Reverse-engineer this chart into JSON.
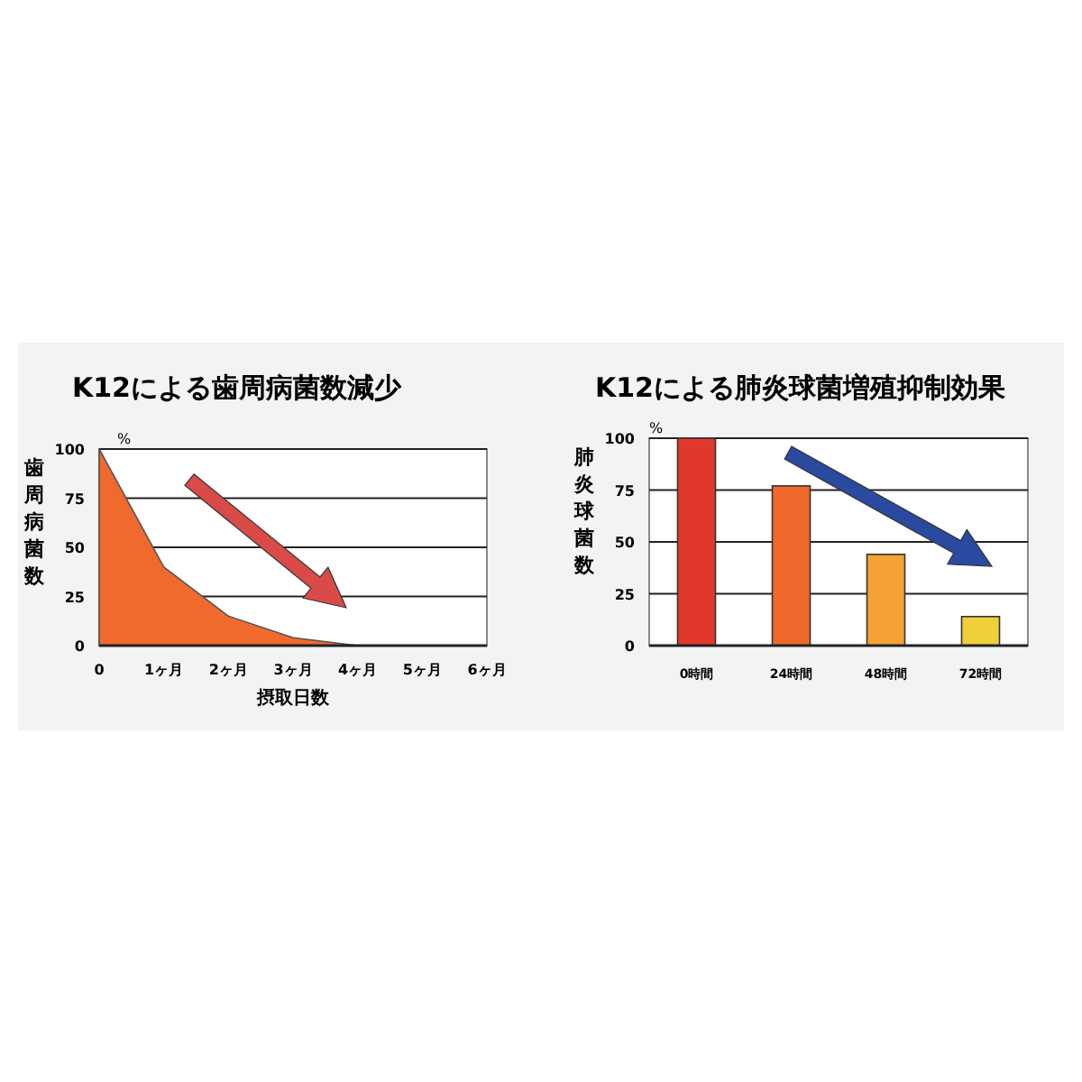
{
  "chart_data": [
    {
      "type": "area",
      "title": "K12による歯周病菌数減少",
      "ylabel": "歯周病菌数",
      "xlabel": "摂取日数",
      "annotations": [
        "%"
      ],
      "x": [
        0,
        1,
        2,
        3,
        4
      ],
      "series": [
        {
          "color": "#f06a2e",
          "values": [
            100,
            40,
            15,
            4,
            0
          ]
        }
      ],
      "xlim": [
        0,
        6
      ],
      "xticks": [
        0,
        {
          "value": 1,
          "label": "1ヶ月"
        },
        {
          "value": 2,
          "label": "2ヶ月"
        },
        {
          "value": 3,
          "label": "3ヶ月"
        },
        {
          "value": 4,
          "label": "4ヶ月"
        },
        {
          "value": 5,
          "label": "5ヶ月"
        },
        {
          "value": 6,
          "label": "6ヶ月"
        }
      ],
      "ylim": [
        0,
        100
      ],
      "yticks": [
        0,
        25,
        50,
        75,
        100
      ],
      "grid": "y"
    },
    {
      "type": "bar",
      "title": "K12による肺炎球菌増殖抑制効果",
      "ylabel": "肺炎球菌数",
      "annotations": [
        "%"
      ],
      "categories": [
        "0時間",
        "24時間",
        "48時間",
        "72時間"
      ],
      "values": [
        100,
        77,
        44,
        14
      ],
      "colors": [
        "#e2382c",
        "#f0682a",
        "#f4a234",
        "#efcf3a"
      ],
      "ylim": [
        0,
        100
      ],
      "yticks": [
        0,
        25,
        50,
        75,
        100
      ],
      "grid": "y"
    }
  ]
}
